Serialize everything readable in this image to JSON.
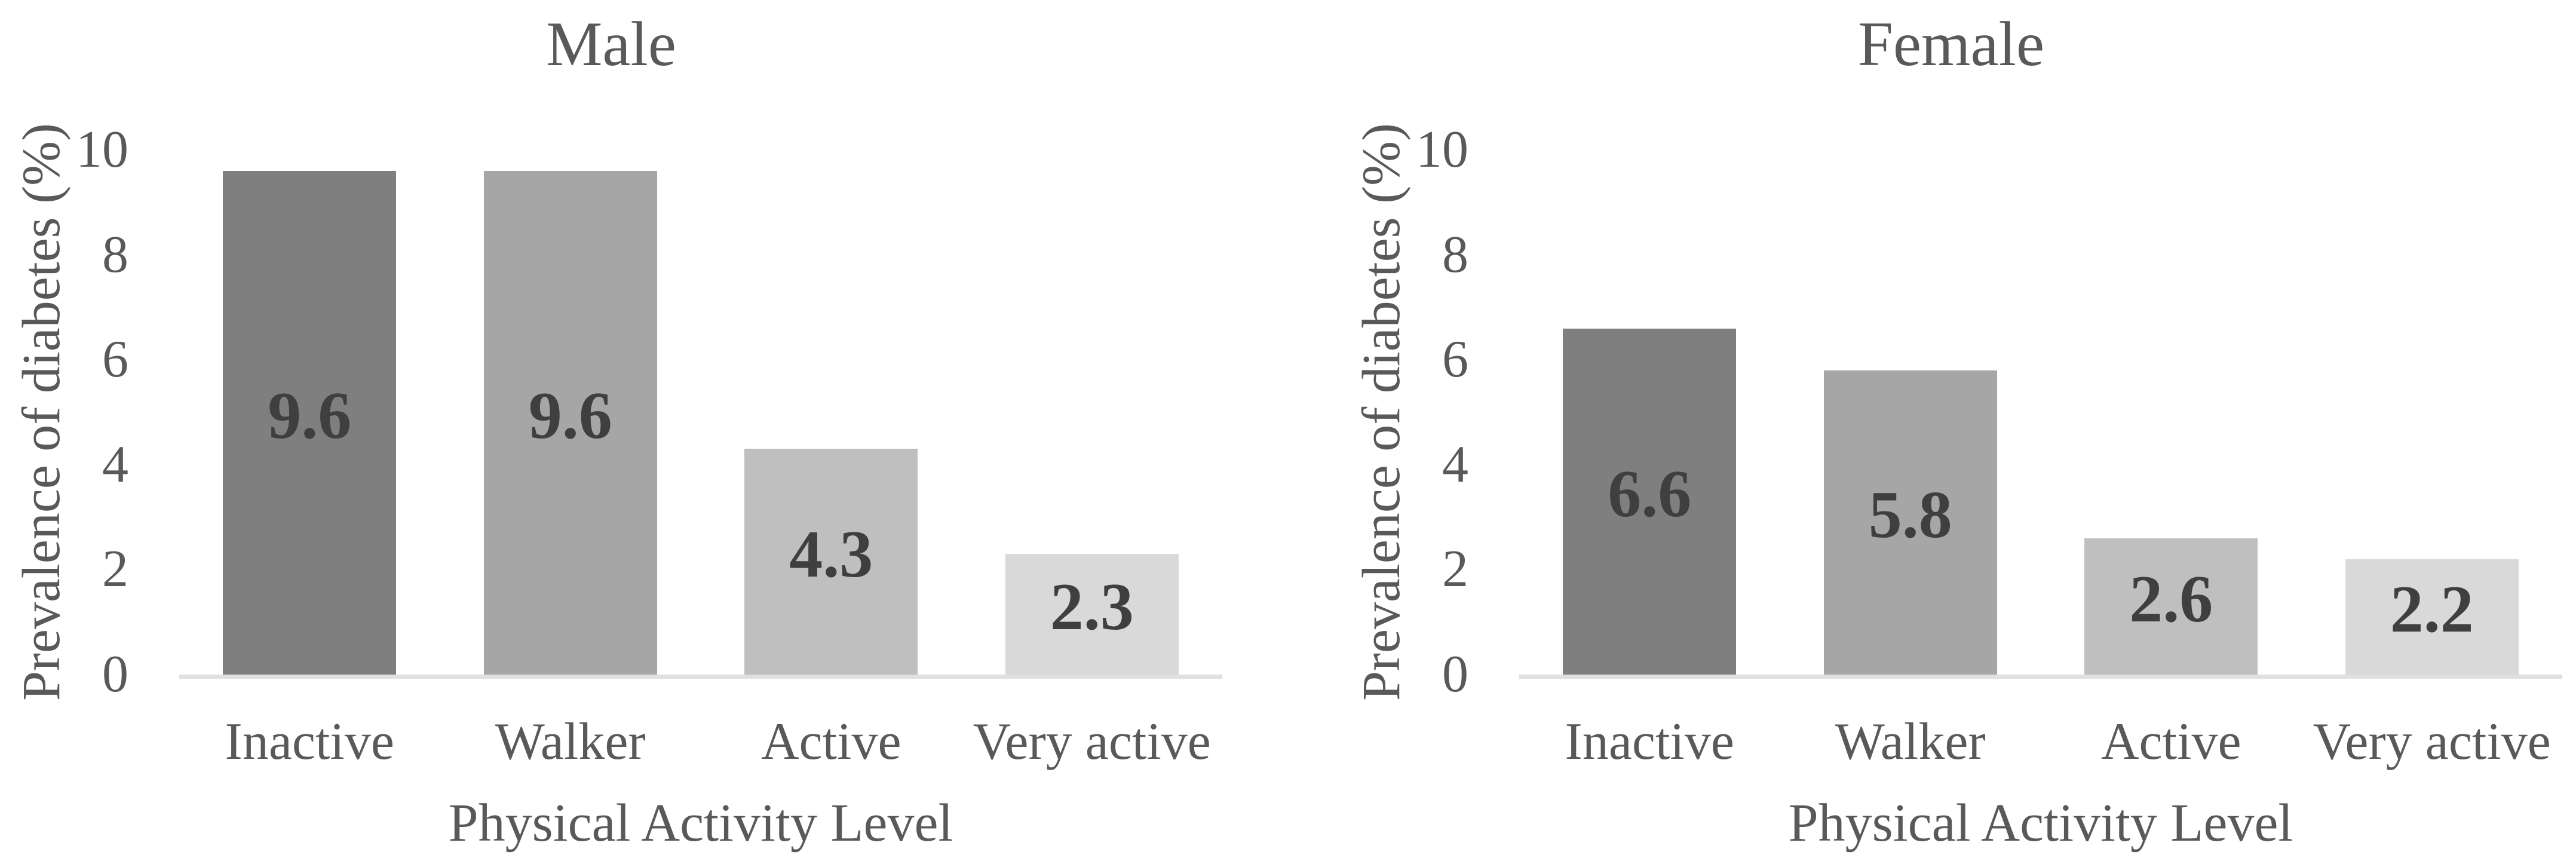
{
  "style": {
    "background": "#ffffff",
    "text_color": "#595959",
    "data_label_color": "#3f3f3f",
    "axis_line_color": "#e0e0e0"
  },
  "chart_data": [
    {
      "type": "bar",
      "title": "Male",
      "categories": [
        "Inactive",
        "Walker",
        "Active",
        "Very active"
      ],
      "values": [
        9.6,
        9.6,
        4.3,
        2.3
      ],
      "value_labels": [
        "9.6",
        "9.6",
        "4.3",
        "2.3"
      ],
      "xlabel": "Physical Activity Level",
      "ylabel": "Prevalence of diabetes (%)",
      "ylim": [
        0,
        10
      ],
      "yticks": [
        0,
        2,
        4,
        6,
        8,
        10
      ],
      "grid": false,
      "legend": "none",
      "bar_colors": [
        "#7f7f7f",
        "#a6a6a6",
        "#bfbfbf",
        "#d9d9d9"
      ],
      "data_label_position": "center"
    },
    {
      "type": "bar",
      "title": "Female",
      "categories": [
        "Inactive",
        "Walker",
        "Active",
        "Very active"
      ],
      "values": [
        6.6,
        5.8,
        2.6,
        2.2
      ],
      "value_labels": [
        "6.6",
        "5.8",
        "2.6",
        "2.2"
      ],
      "xlabel": "Physical Activity Level",
      "ylabel": "Prevalence of diabetes (%)",
      "ylim": [
        0,
        10
      ],
      "yticks": [
        0,
        2,
        4,
        6,
        8,
        10
      ],
      "grid": false,
      "legend": "none",
      "bar_colors": [
        "#7f7f7f",
        "#a6a6a6",
        "#bfbfbf",
        "#d9d9d9"
      ],
      "data_label_position": "center"
    }
  ]
}
